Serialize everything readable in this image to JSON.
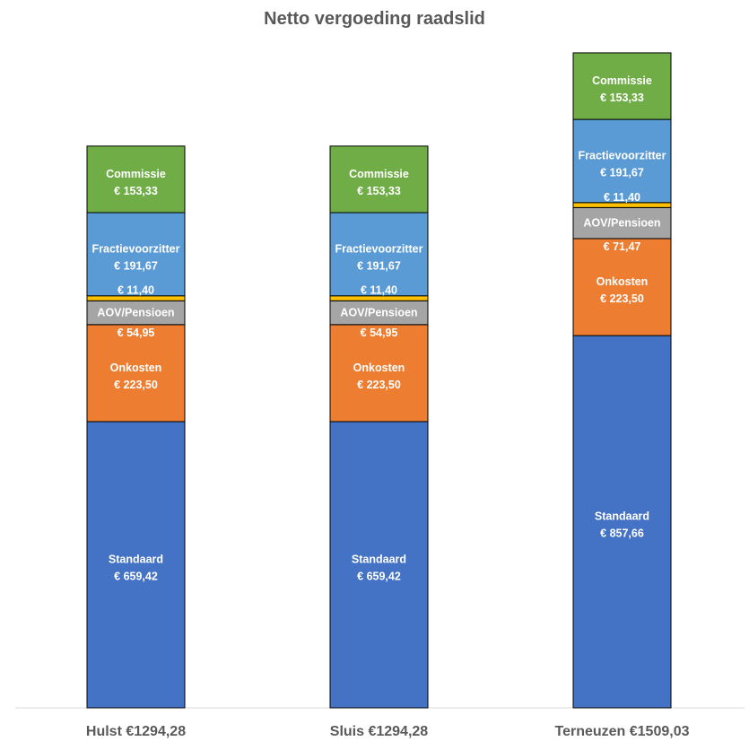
{
  "chart_data": {
    "type": "bar",
    "stacked": true,
    "title": "Netto vergoeding raadslid",
    "categories": [
      "Hulst €1294,28",
      "Sluis €1294,28",
      "Terneuzen €1509,03"
    ],
    "series": [
      {
        "name": "Standaard",
        "color": "#4472C4",
        "values": [
          659.42,
          659.42,
          857.66
        ],
        "labels": [
          "€ 659,42",
          "€ 659,42",
          "€ 857,66"
        ]
      },
      {
        "name": "Onkosten",
        "color": "#ED7D31",
        "values": [
          223.5,
          223.5,
          223.5
        ],
        "labels": [
          "€ 223,50",
          "€ 223,50",
          "€ 223,50"
        ]
      },
      {
        "name": "AOV/Pensioen",
        "color": "#A5A5A5",
        "values": [
          54.95,
          54.95,
          71.47
        ],
        "labels": [
          "€ 54,95",
          "€ 54,95",
          "€ 71,47"
        ]
      },
      {
        "name": "",
        "color": "#FFC000",
        "values": [
          11.4,
          11.4,
          11.4
        ],
        "labels": [
          "€ 11,40",
          "€ 11,40",
          "€ 11,40"
        ]
      },
      {
        "name": "Fractievoorzitter",
        "color": "#5B9BD5",
        "values": [
          191.67,
          191.67,
          191.67
        ],
        "labels": [
          "€ 191,67",
          "€ 191,67",
          "€ 191,67"
        ]
      },
      {
        "name": "Commissie",
        "color": "#70AD47",
        "values": [
          153.33,
          153.33,
          153.33
        ],
        "labels": [
          "€ 153,33",
          "€ 153,33",
          "€ 153,33"
        ]
      }
    ],
    "ylim": [
      0,
      1510
    ],
    "grid": false,
    "legend": "none"
  }
}
